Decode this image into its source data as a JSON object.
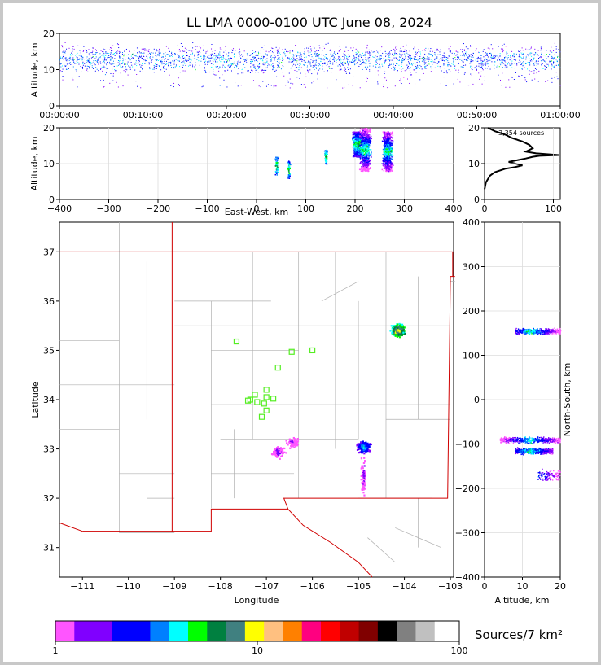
{
  "title": "LL LMA 0000-0100 UTC June 08, 2024",
  "colorbar": {
    "label": "Sources/7 km²",
    "ticks": [
      "1",
      "10",
      "100"
    ],
    "colors": [
      "#ff55ff",
      "#8000ff",
      "#8000ff",
      "#0000ff",
      "#0000ff",
      "#0080ff",
      "#00ffff",
      "#00ff00",
      "#008040",
      "#408080",
      "#ffff00",
      "#ffc080",
      "#ff8000",
      "#ff0080",
      "#ff0000",
      "#c00000",
      "#800000",
      "#000000",
      "#808080",
      "#c0c0c0",
      "#ffffff"
    ]
  },
  "chart_data": [
    {
      "id": "time-height",
      "type": "scatter",
      "ylabel": "Altitude, km",
      "xlim": [
        "00:00:00",
        "01:00:00"
      ],
      "ylim": [
        0,
        20
      ],
      "xticks": [
        "00:00:00",
        "00:10:00",
        "00:20:00",
        "00:30:00",
        "00:40:00",
        "00:50:00",
        "01:00:00"
      ],
      "yticks": [
        "0",
        "10",
        "20"
      ],
      "description_values": {
        "dominant_altitude_band_km": [
          8,
          18
        ]
      }
    },
    {
      "id": "east-west-altitude",
      "type": "scatter",
      "xlabel": "East-West, km",
      "ylabel": "Altitude, km",
      "xlim": [
        -400,
        400
      ],
      "ylim": [
        0,
        20
      ],
      "xticks": [
        "−400",
        "−300",
        "−200",
        "−100",
        "0",
        "100",
        "200",
        "300",
        "400"
      ],
      "yticks": [
        "0",
        "10",
        "20"
      ],
      "clusters": [
        {
          "x": 40,
          "alt": [
            7,
            12
          ]
        },
        {
          "x": 65,
          "alt": [
            6,
            11
          ]
        },
        {
          "x": 140,
          "alt": [
            10,
            14
          ]
        },
        {
          "x": 205,
          "alt": [
            12,
            19
          ]
        },
        {
          "x": 220,
          "alt": [
            8,
            20
          ]
        },
        {
          "x": 265,
          "alt": [
            8,
            19
          ]
        }
      ]
    },
    {
      "id": "altitude-histogram",
      "type": "line",
      "annotation": "3,354 sources",
      "xlim": [
        0,
        110
      ],
      "ylim": [
        0,
        20
      ],
      "xticks": [
        "0",
        "100"
      ],
      "yticks": [
        "0",
        "10",
        "20"
      ],
      "x": [
        0,
        2,
        5,
        8,
        15,
        30,
        45,
        55,
        35,
        60,
        70,
        80,
        108,
        75,
        60,
        70,
        65,
        55,
        40,
        30,
        15,
        5
      ],
      "y": [
        3,
        5,
        6,
        7,
        8,
        9,
        9.5,
        10,
        11,
        12,
        12.5,
        12.8,
        13,
        13.5,
        14,
        15,
        16,
        17,
        18,
        19,
        20,
        21
      ]
    },
    {
      "id": "plan-view",
      "type": "scatter",
      "xlabel": "Longitude",
      "ylabel": "Latitude",
      "xlim": [
        -111.5,
        -102.9
      ],
      "ylim": [
        30.4,
        37.6
      ],
      "xticks": [
        "−111",
        "−110",
        "−109",
        "−108",
        "−107",
        "−106",
        "−105",
        "−104",
        "−103"
      ],
      "yticks": [
        "31",
        "32",
        "33",
        "34",
        "35",
        "36",
        "37"
      ],
      "stations": [
        [
          -107.65,
          35.18
        ],
        [
          -106.45,
          34.97
        ],
        [
          -106.0,
          35.0
        ],
        [
          -106.75,
          34.65
        ],
        [
          -107.0,
          34.2
        ],
        [
          -107.0,
          34.05
        ],
        [
          -107.25,
          34.1
        ],
        [
          -107.35,
          34.0
        ],
        [
          -107.2,
          33.95
        ],
        [
          -107.05,
          33.92
        ],
        [
          -106.85,
          34.02
        ],
        [
          -107.0,
          33.78
        ],
        [
          -107.1,
          33.65
        ],
        [
          -107.4,
          33.98
        ]
      ],
      "storms": [
        {
          "lon": -104.15,
          "lat": 35.42,
          "peak": 20
        },
        {
          "lon": -104.9,
          "lat": 33.05,
          "peak": 12
        },
        {
          "lon": -104.9,
          "lat": 32.45,
          "peak": 4
        },
        {
          "lon": -106.75,
          "lat": 32.95,
          "peak": 5
        },
        {
          "lon": -106.45,
          "lat": 33.15,
          "peak": 3
        }
      ]
    },
    {
      "id": "ns-altitude",
      "type": "scatter",
      "xlabel": "Altitude, km",
      "ylabel": "North-South, km",
      "xlim": [
        0,
        20
      ],
      "ylim": [
        -400,
        400
      ],
      "xticks": [
        "0",
        "10",
        "20"
      ],
      "yticks": [
        "−400",
        "−300",
        "−200",
        "−100",
        "0",
        "100",
        "200",
        "300",
        "400"
      ],
      "clusters": [
        {
          "ns": 155,
          "alt": [
            8,
            20
          ]
        },
        {
          "ns": -90,
          "alt": [
            4,
            20
          ]
        },
        {
          "ns": -115,
          "alt": [
            8,
            18
          ]
        },
        {
          "ns": -170,
          "alt": [
            14,
            20
          ]
        }
      ]
    }
  ]
}
